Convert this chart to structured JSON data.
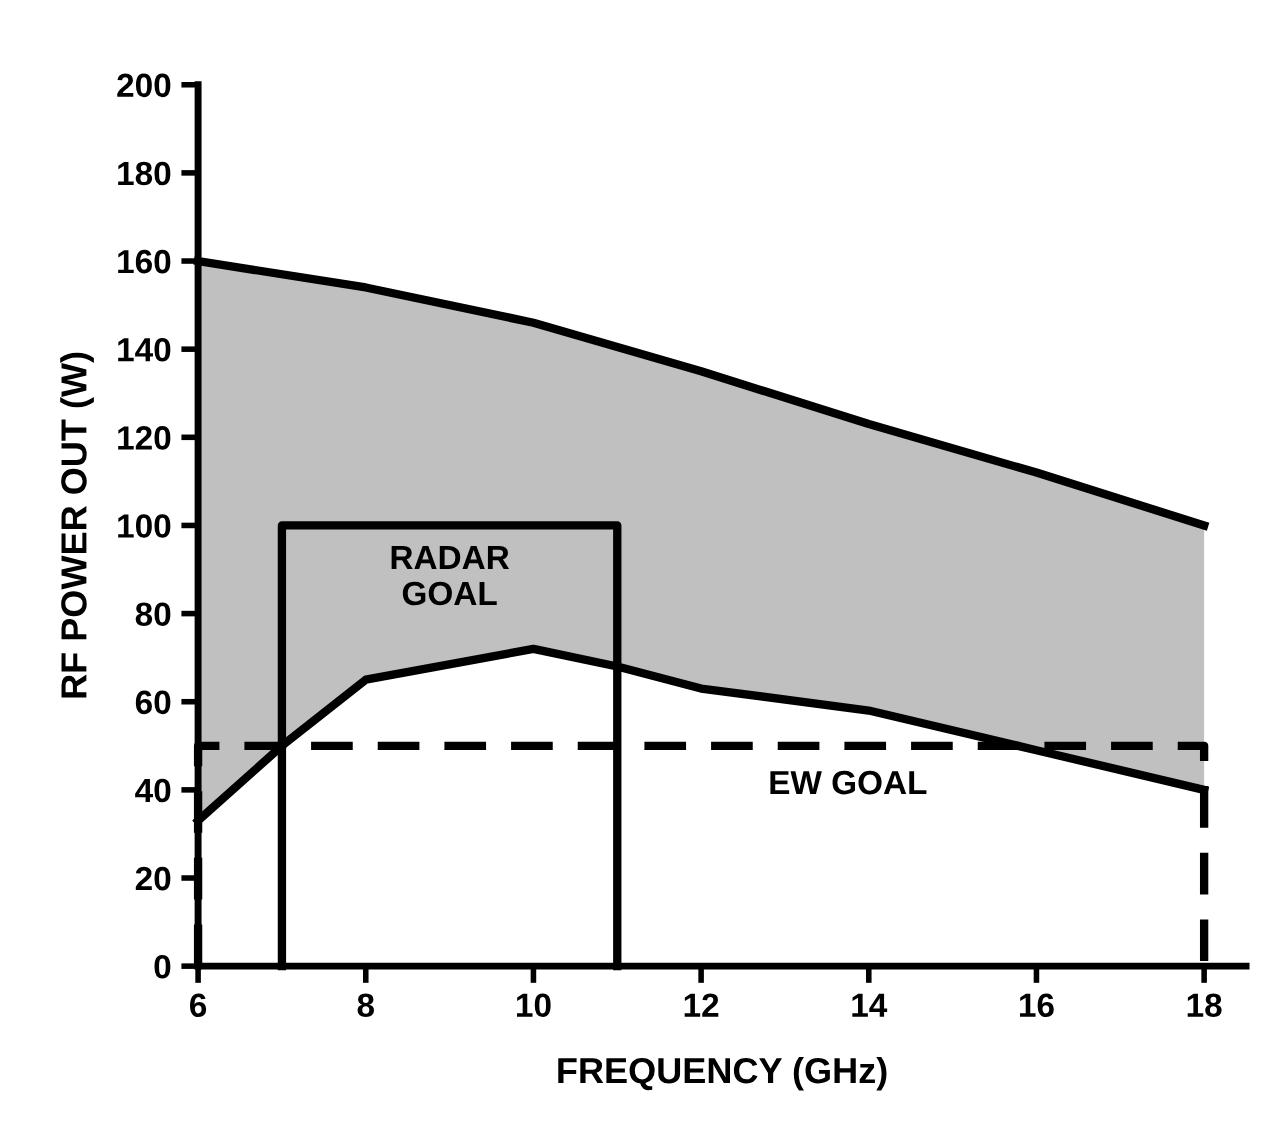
{
  "chart_data": {
    "type": "line",
    "xlabel": "FREQUENCY (GHz)",
    "ylabel": "RF POWER OUT (W)",
    "xlim": [
      6,
      18.5
    ],
    "ylim": [
      0,
      200
    ],
    "xticks": [
      6,
      8,
      10,
      12,
      14,
      16,
      18
    ],
    "yticks": [
      0,
      20,
      40,
      60,
      80,
      100,
      120,
      140,
      160,
      180,
      200
    ],
    "grid": false,
    "marker": "none",
    "series": [
      {
        "color": "#000000",
        "x": [
          6,
          8,
          10,
          12,
          14,
          16,
          18
        ],
        "values": [
          160,
          154,
          146,
          135,
          123,
          112,
          100
        ],
        "lower": [
          33,
          65,
          72,
          63,
          58,
          49,
          40
        ],
        "upper": [
          160,
          154,
          146,
          135,
          123,
          112,
          100
        ]
      },
      {
        "color": "#000000",
        "x": [
          6,
          7,
          8,
          10,
          11,
          12,
          14,
          16,
          18
        ],
        "values": [
          33,
          50,
          65,
          72,
          68,
          63,
          58,
          49,
          40
        ]
      },
      {
        "color": "#000000",
        "line_style": "solid",
        "x": [
          7,
          7,
          11,
          11
        ],
        "values": [
          0,
          100,
          100,
          0
        ]
      },
      {
        "color": "#000000",
        "line_style": "dashed",
        "x": [
          6,
          6,
          18,
          18
        ],
        "values": [
          0,
          50,
          50,
          0
        ]
      }
    ],
    "annotations": [
      "RADAR\nGOAL",
      "EW GOAL"
    ]
  }
}
